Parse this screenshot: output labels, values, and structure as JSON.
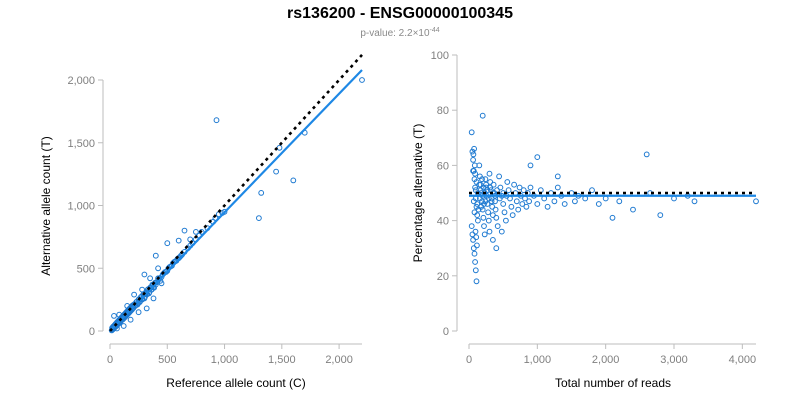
{
  "figure": {
    "title": "rs136200 - ENSG00000100345",
    "subtitle_base": "p-value: 2.2×10",
    "subtitle_exp": "-44"
  },
  "colors": {
    "points": "#1f7ad1",
    "fit_line": "#1e88e5",
    "reference_line": "#000000",
    "axis": "#bdbdbd"
  },
  "chart_data": [
    {
      "type": "scatter",
      "xlabel": "Reference allele count (C)",
      "ylabel": "Alternative allele count (T)",
      "xlim": [
        0,
        2200
      ],
      "ylim": [
        0,
        2000
      ],
      "xticks": [
        0,
        500,
        1000,
        1500,
        2000
      ],
      "xtick_labels": [
        "0",
        "500",
        "1,000",
        "1,500",
        "2,000"
      ],
      "yticks": [
        0,
        500,
        1000,
        1500,
        2000
      ],
      "ytick_labels": [
        "0",
        "500",
        "1,000",
        "1,500",
        "2,000"
      ],
      "reference_line": {
        "style": "dotted",
        "x": [
          0,
          2200
        ],
        "y": [
          0,
          2200
        ]
      },
      "fit_line": {
        "style": "solid",
        "x": [
          0,
          2200
        ],
        "y": [
          0,
          2080
        ]
      },
      "points": [
        [
          20,
          15
        ],
        [
          25,
          30
        ],
        [
          30,
          22
        ],
        [
          35,
          40
        ],
        [
          40,
          28
        ],
        [
          45,
          50
        ],
        [
          50,
          35
        ],
        [
          55,
          60
        ],
        [
          60,
          45
        ],
        [
          65,
          70
        ],
        [
          70,
          55
        ],
        [
          75,
          80
        ],
        [
          80,
          62
        ],
        [
          85,
          90
        ],
        [
          90,
          72
        ],
        [
          95,
          100
        ],
        [
          100,
          85
        ],
        [
          105,
          110
        ],
        [
          110,
          95
        ],
        [
          115,
          120
        ],
        [
          120,
          100
        ],
        [
          125,
          130
        ],
        [
          130,
          110
        ],
        [
          135,
          140
        ],
        [
          140,
          120
        ],
        [
          145,
          150
        ],
        [
          150,
          130
        ],
        [
          155,
          160
        ],
        [
          160,
          140
        ],
        [
          165,
          170
        ],
        [
          170,
          150
        ],
        [
          175,
          180
        ],
        [
          180,
          160
        ],
        [
          185,
          190
        ],
        [
          190,
          170
        ],
        [
          195,
          200
        ],
        [
          200,
          180
        ],
        [
          210,
          210
        ],
        [
          220,
          200
        ],
        [
          230,
          230
        ],
        [
          240,
          210
        ],
        [
          250,
          250
        ],
        [
          260,
          230
        ],
        [
          270,
          270
        ],
        [
          280,
          250
        ],
        [
          290,
          290
        ],
        [
          300,
          260
        ],
        [
          310,
          300
        ],
        [
          320,
          290
        ],
        [
          330,
          330
        ],
        [
          340,
          300
        ],
        [
          350,
          340
        ],
        [
          360,
          330
        ],
        [
          370,
          370
        ],
        [
          380,
          350
        ],
        [
          390,
          380
        ],
        [
          400,
          370
        ],
        [
          420,
          420
        ],
        [
          440,
          400
        ],
        [
          460,
          450
        ],
        [
          480,
          470
        ],
        [
          500,
          480
        ],
        [
          520,
          510
        ],
        [
          540,
          520
        ],
        [
          560,
          550
        ],
        [
          580,
          560
        ],
        [
          600,
          580
        ],
        [
          620,
          600
        ],
        [
          650,
          630
        ],
        [
          680,
          660
        ],
        [
          700,
          680
        ],
        [
          720,
          700
        ],
        [
          750,
          730
        ],
        [
          780,
          760
        ],
        [
          800,
          790
        ],
        [
          850,
          820
        ],
        [
          900,
          870
        ],
        [
          920,
          900
        ],
        [
          950,
          930
        ],
        [
          980,
          940
        ],
        [
          35,
          120
        ],
        [
          60,
          20
        ],
        [
          80,
          130
        ],
        [
          120,
          40
        ],
        [
          150,
          200
        ],
        [
          180,
          90
        ],
        [
          210,
          290
        ],
        [
          250,
          150
        ],
        [
          280,
          330
        ],
        [
          320,
          180
        ],
        [
          350,
          420
        ],
        [
          380,
          260
        ],
        [
          420,
          500
        ],
        [
          450,
          380
        ],
        [
          300,
          450
        ],
        [
          400,
          600
        ],
        [
          500,
          700
        ],
        [
          600,
          720
        ],
        [
          650,
          800
        ],
        [
          700,
          730
        ],
        [
          750,
          790
        ],
        [
          930,
          1680
        ],
        [
          1300,
          900
        ],
        [
          1320,
          1100
        ],
        [
          1450,
          1270
        ],
        [
          1480,
          1460
        ],
        [
          1600,
          1200
        ],
        [
          1700,
          1580
        ],
        [
          2200,
          2000
        ],
        [
          1000,
          950
        ],
        [
          15,
          5
        ],
        [
          18,
          25
        ],
        [
          22,
          10
        ],
        [
          28,
          35
        ],
        [
          32,
          18
        ],
        [
          38,
          45
        ],
        [
          42,
          30
        ],
        [
          48,
          55
        ],
        [
          52,
          38
        ],
        [
          58,
          65
        ],
        [
          62,
          48
        ],
        [
          68,
          75
        ],
        [
          72,
          58
        ],
        [
          78,
          85
        ],
        [
          82,
          65
        ],
        [
          88,
          95
        ],
        [
          92,
          78
        ],
        [
          98,
          105
        ],
        [
          102,
          88
        ],
        [
          108,
          115
        ],
        [
          112,
          92
        ],
        [
          118,
          125
        ],
        [
          122,
          105
        ],
        [
          128,
          135
        ],
        [
          132,
          115
        ],
        [
          138,
          145
        ],
        [
          142,
          125
        ],
        [
          148,
          155
        ],
        [
          152,
          135
        ],
        [
          158,
          165
        ],
        [
          162,
          142
        ],
        [
          168,
          175
        ],
        [
          172,
          155
        ],
        [
          178,
          185
        ],
        [
          182,
          162
        ],
        [
          188,
          195
        ],
        [
          192,
          172
        ],
        [
          198,
          205
        ],
        [
          205,
          185
        ],
        [
          215,
          215
        ],
        [
          225,
          205
        ],
        [
          235,
          235
        ],
        [
          245,
          220
        ],
        [
          255,
          255
        ],
        [
          265,
          240
        ],
        [
          275,
          275
        ],
        [
          285,
          255
        ],
        [
          295,
          295
        ],
        [
          305,
          270
        ],
        [
          315,
          310
        ],
        [
          325,
          295
        ],
        [
          335,
          335
        ],
        [
          345,
          310
        ],
        [
          355,
          350
        ],
        [
          365,
          330
        ],
        [
          375,
          365
        ],
        [
          385,
          345
        ],
        [
          395,
          385
        ],
        [
          410,
          390
        ],
        [
          430,
          420
        ],
        [
          450,
          430
        ],
        [
          470,
          460
        ],
        [
          490,
          470
        ],
        [
          510,
          500
        ],
        [
          530,
          515
        ],
        [
          550,
          540
        ],
        [
          570,
          555
        ],
        [
          590,
          575
        ],
        [
          610,
          590
        ],
        [
          630,
          610
        ]
      ]
    },
    {
      "type": "scatter",
      "xlabel": "Total number of reads",
      "ylabel": "Percentage alternative (T)",
      "xlim": [
        0,
        4200
      ],
      "ylim": [
        0,
        100
      ],
      "xticks": [
        0,
        1000,
        2000,
        3000,
        4000
      ],
      "xtick_labels": [
        "0",
        "1,000",
        "2,000",
        "3,000",
        "4,000"
      ],
      "yticks": [
        0,
        20,
        40,
        60,
        80,
        100
      ],
      "ytick_labels": [
        "0",
        "20",
        "40",
        "60",
        "80",
        "100"
      ],
      "reference_line": {
        "style": "dotted",
        "x": [
          0,
          4200
        ],
        "y": [
          50,
          50
        ]
      },
      "fit_line": {
        "style": "solid",
        "x": [
          0,
          4200
        ],
        "y": [
          49,
          49
        ]
      },
      "points": [
        [
          40,
          72
        ],
        [
          50,
          65
        ],
        [
          60,
          62
        ],
        [
          70,
          58
        ],
        [
          80,
          55
        ],
        [
          90,
          52
        ],
        [
          100,
          48
        ],
        [
          110,
          45
        ],
        [
          120,
          42
        ],
        [
          130,
          40
        ],
        [
          40,
          38
        ],
        [
          50,
          35
        ],
        [
          60,
          33
        ],
        [
          70,
          30
        ],
        [
          80,
          28
        ],
        [
          90,
          25
        ],
        [
          100,
          22
        ],
        [
          110,
          18
        ],
        [
          200,
          78
        ],
        [
          150,
          60
        ],
        [
          160,
          56
        ],
        [
          170,
          53
        ],
        [
          180,
          50
        ],
        [
          190,
          47
        ],
        [
          200,
          44
        ],
        [
          210,
          41
        ],
        [
          220,
          38
        ],
        [
          230,
          35
        ],
        [
          240,
          55
        ],
        [
          250,
          52
        ],
        [
          260,
          49
        ],
        [
          270,
          46
        ],
        [
          280,
          43
        ],
        [
          290,
          40
        ],
        [
          300,
          57
        ],
        [
          310,
          54
        ],
        [
          320,
          51
        ],
        [
          330,
          48
        ],
        [
          340,
          45
        ],
        [
          350,
          42
        ],
        [
          360,
          53
        ],
        [
          370,
          50
        ],
        [
          380,
          47
        ],
        [
          390,
          44
        ],
        [
          400,
          41
        ],
        [
          420,
          38
        ],
        [
          440,
          56
        ],
        [
          460,
          52
        ],
        [
          480,
          49
        ],
        [
          500,
          46
        ],
        [
          520,
          43
        ],
        [
          540,
          40
        ],
        [
          560,
          54
        ],
        [
          580,
          51
        ],
        [
          600,
          48
        ],
        [
          620,
          45
        ],
        [
          640,
          42
        ],
        [
          660,
          53
        ],
        [
          680,
          50
        ],
        [
          700,
          47
        ],
        [
          720,
          44
        ],
        [
          740,
          52
        ],
        [
          760,
          49
        ],
        [
          780,
          46
        ],
        [
          800,
          51
        ],
        [
          820,
          48
        ],
        [
          840,
          45
        ],
        [
          860,
          50
        ],
        [
          880,
          47
        ],
        [
          900,
          52
        ],
        [
          950,
          49
        ],
        [
          1000,
          46
        ],
        [
          1050,
          51
        ],
        [
          1100,
          48
        ],
        [
          1150,
          45
        ],
        [
          1200,
          50
        ],
        [
          1250,
          47
        ],
        [
          1300,
          52
        ],
        [
          1350,
          49
        ],
        [
          1400,
          46
        ],
        [
          1500,
          50
        ],
        [
          1550,
          47
        ],
        [
          1600,
          49
        ],
        [
          1700,
          48
        ],
        [
          1800,
          51
        ],
        [
          1900,
          46
        ],
        [
          2000,
          48
        ],
        [
          2100,
          41
        ],
        [
          2200,
          47
        ],
        [
          2400,
          44
        ],
        [
          2600,
          64
        ],
        [
          2650,
          50
        ],
        [
          2800,
          42
        ],
        [
          3000,
          48
        ],
        [
          3200,
          49
        ],
        [
          3300,
          47
        ],
        [
          4200,
          47
        ],
        [
          900,
          60
        ],
        [
          1000,
          63
        ],
        [
          1300,
          56
        ],
        [
          60,
          58
        ],
        [
          70,
          47
        ],
        [
          80,
          43
        ],
        [
          90,
          57
        ],
        [
          100,
          51
        ],
        [
          110,
          54
        ],
        [
          120,
          46
        ],
        [
          130,
          50
        ],
        [
          140,
          44
        ],
        [
          150,
          53
        ],
        [
          160,
          48
        ],
        [
          170,
          51
        ],
        [
          180,
          45
        ],
        [
          190,
          55
        ],
        [
          200,
          49
        ],
        [
          210,
          52
        ],
        [
          220,
          46
        ],
        [
          230,
          50
        ],
        [
          240,
          47
        ],
        [
          250,
          53
        ],
        [
          270,
          51
        ],
        [
          290,
          48
        ],
        [
          310,
          52
        ],
        [
          330,
          47
        ],
        [
          350,
          50
        ],
        [
          380,
          49
        ],
        [
          410,
          51
        ],
        [
          450,
          48
        ],
        [
          500,
          50
        ],
        [
          550,
          49
        ],
        [
          65,
          64
        ],
        [
          75,
          66
        ],
        [
          85,
          60
        ],
        [
          95,
          36
        ],
        [
          105,
          34
        ],
        [
          115,
          31
        ],
        [
          300,
          36
        ],
        [
          350,
          33
        ],
        [
          400,
          30
        ],
        [
          480,
          36
        ]
      ]
    }
  ]
}
